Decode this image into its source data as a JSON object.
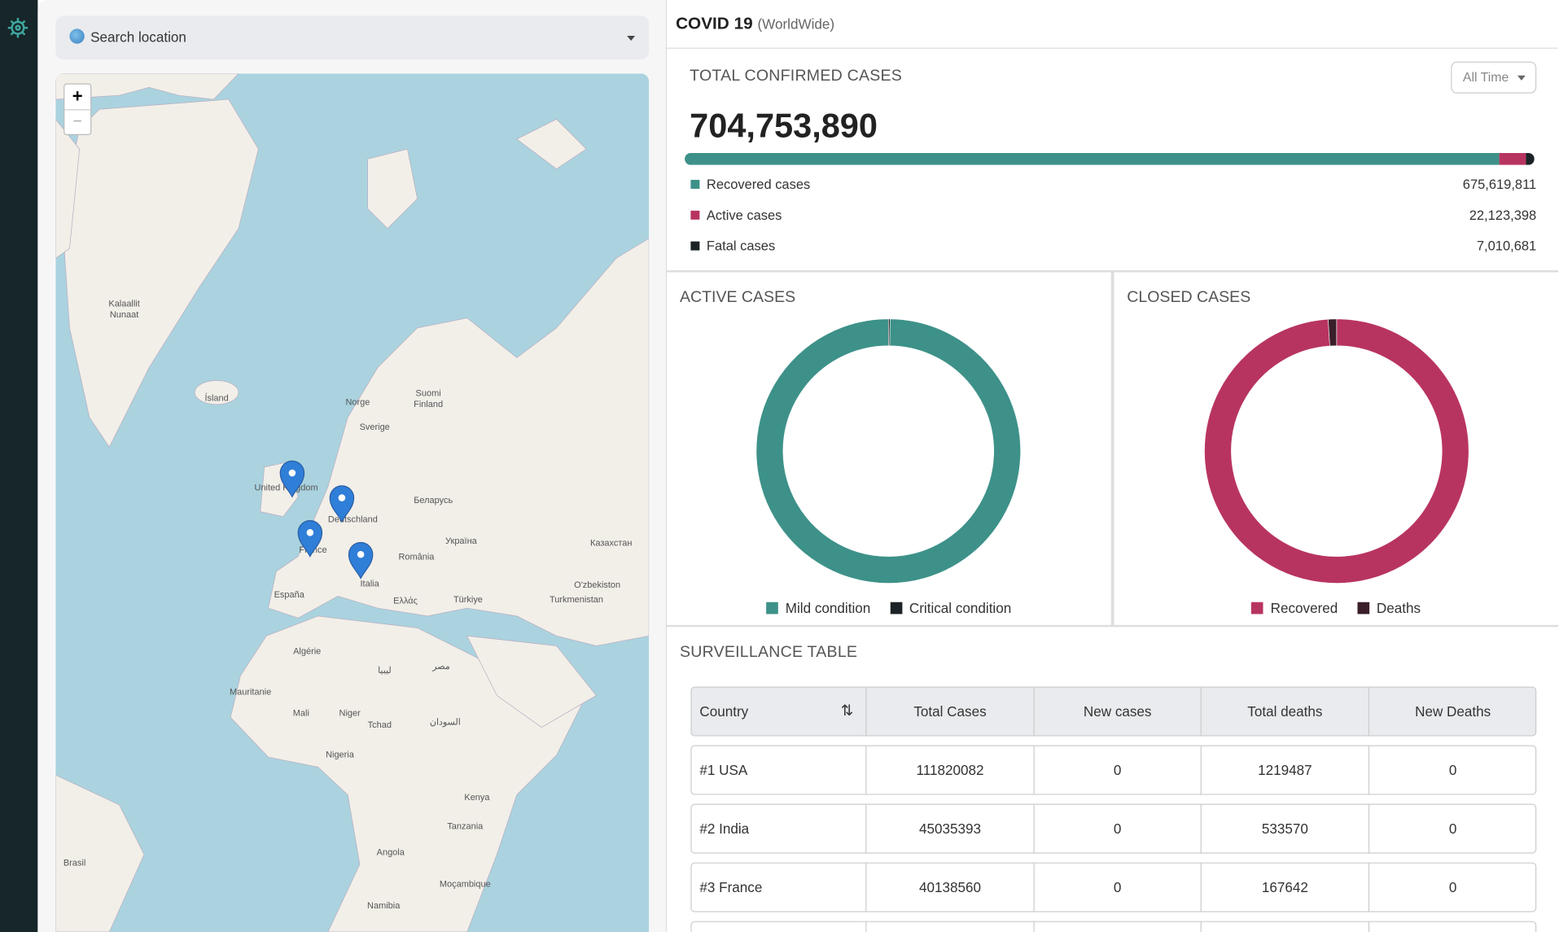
{
  "search": {
    "placeholder": "Search location"
  },
  "map": {
    "zoom_in": "+",
    "zoom_out": "−",
    "labels": [
      "Kalaallit Nunaat",
      "Ísland",
      "Norge",
      "Suomi Finland",
      "Sverige",
      "United Kingdom",
      "Deutschland",
      "Беларусь",
      "France",
      "Україна",
      "România",
      "Italia",
      "España",
      "Ελλάς",
      "Türkiye",
      "Казахстан",
      "O'zbekiston",
      "Turkmenistan",
      "Algérie",
      "ليبيا",
      "مصر",
      "Mauritanie",
      "Mali",
      "Niger",
      "Tchad",
      "السودان",
      "Nigeria",
      "Kenya",
      "Tanzania",
      "Angola",
      "Moçambique",
      "Namibia",
      "Brasil"
    ]
  },
  "header": {
    "title": "COVID 19",
    "subtitle": "(WorldWide)"
  },
  "summary": {
    "title": "TOTAL CONFIRMED CASES",
    "filter": "All Time",
    "total": "704,753,890",
    "items": [
      {
        "name": "Recovered cases",
        "value": 675619811,
        "value_label": "675,619,811",
        "color": "#3d9189"
      },
      {
        "name": "Active cases",
        "value": 22123398,
        "value_label": "22,123,398",
        "color": "#b83460"
      },
      {
        "name": "Fatal cases",
        "value": 7010681,
        "value_label": "7,010,681",
        "color": "#1b2326"
      }
    ]
  },
  "charts": [
    {
      "type": "donut",
      "title": "ACTIVE CASES",
      "series": [
        {
          "name": "Critical condition",
          "color": "#1b2326",
          "value": 0.2
        },
        {
          "name": "Mild condition",
          "color": "#3d9189",
          "value": 99.8
        }
      ],
      "legend_order": [
        1,
        0
      ]
    },
    {
      "type": "donut",
      "title": "CLOSED CASES",
      "series": [
        {
          "name": "Recovered",
          "color": "#b83460",
          "value": 675619811
        },
        {
          "name": "Deaths",
          "color": "#3a1f2a",
          "value": 7010681
        }
      ],
      "legend_order": [
        0,
        1
      ]
    }
  ],
  "table": {
    "title": "SURVEILLANCE TABLE",
    "columns": [
      "Country",
      "Total Cases",
      "New cases",
      "Total deaths",
      "New Deaths"
    ],
    "rows": [
      [
        "#1 USA",
        "111820082",
        "0",
        "1219487",
        "0"
      ],
      [
        "#2 India",
        "45035393",
        "0",
        "533570",
        "0"
      ],
      [
        "#3 France",
        "40138560",
        "0",
        "167642",
        "0"
      ]
    ]
  }
}
